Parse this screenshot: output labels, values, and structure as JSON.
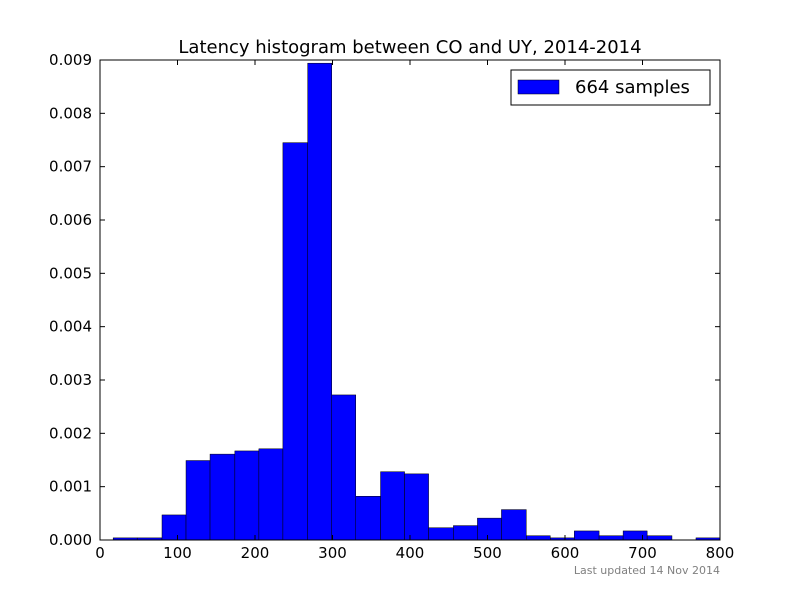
{
  "chart_data": {
    "type": "bar",
    "title": "Latency histogram between CO and UY, 2014-2014",
    "xlabel": "",
    "ylabel": "",
    "xlim": [
      0,
      800
    ],
    "ylim": [
      0,
      0.009
    ],
    "xticks": [
      "0",
      "100",
      "200",
      "300",
      "400",
      "500",
      "600",
      "700",
      "800"
    ],
    "yticks": [
      "0.000",
      "0.001",
      "0.002",
      "0.003",
      "0.004",
      "0.005",
      "0.006",
      "0.007",
      "0.008",
      "0.009"
    ],
    "grid": false,
    "legend_position": "top-right",
    "series": [
      {
        "name": "664 samples",
        "color": "#0000ff",
        "bins": [
          {
            "x0": 17,
            "x1": 48,
            "value": 4e-05
          },
          {
            "x0": 48,
            "x1": 80,
            "value": 4e-05
          },
          {
            "x0": 80,
            "x1": 111,
            "value": 0.00047
          },
          {
            "x0": 111,
            "x1": 142,
            "value": 0.00149
          },
          {
            "x0": 142,
            "x1": 174,
            "value": 0.00161
          },
          {
            "x0": 174,
            "x1": 205,
            "value": 0.00167
          },
          {
            "x0": 205,
            "x1": 236,
            "value": 0.00171
          },
          {
            "x0": 236,
            "x1": 268,
            "value": 0.00745
          },
          {
            "x0": 268,
            "x1": 299,
            "value": 0.00894
          },
          {
            "x0": 299,
            "x1": 330,
            "value": 0.00272
          },
          {
            "x0": 330,
            "x1": 362,
            "value": 0.00082
          },
          {
            "x0": 362,
            "x1": 393,
            "value": 0.00128
          },
          {
            "x0": 393,
            "x1": 424,
            "value": 0.00124
          },
          {
            "x0": 424,
            "x1": 456,
            "value": 0.00023
          },
          {
            "x0": 456,
            "x1": 487,
            "value": 0.00027
          },
          {
            "x0": 487,
            "x1": 518,
            "value": 0.00041
          },
          {
            "x0": 518,
            "x1": 550,
            "value": 0.00057
          },
          {
            "x0": 550,
            "x1": 581,
            "value": 8e-05
          },
          {
            "x0": 581,
            "x1": 612,
            "value": 4e-05
          },
          {
            "x0": 612,
            "x1": 644,
            "value": 0.00017
          },
          {
            "x0": 644,
            "x1": 675,
            "value": 8e-05
          },
          {
            "x0": 675,
            "x1": 706,
            "value": 0.00017
          },
          {
            "x0": 706,
            "x1": 738,
            "value": 8e-05
          },
          {
            "x0": 738,
            "x1": 769,
            "value": 0.0
          },
          {
            "x0": 769,
            "x1": 800,
            "value": 4e-05
          }
        ]
      }
    ],
    "footnote": "Last updated 14 Nov 2014"
  }
}
